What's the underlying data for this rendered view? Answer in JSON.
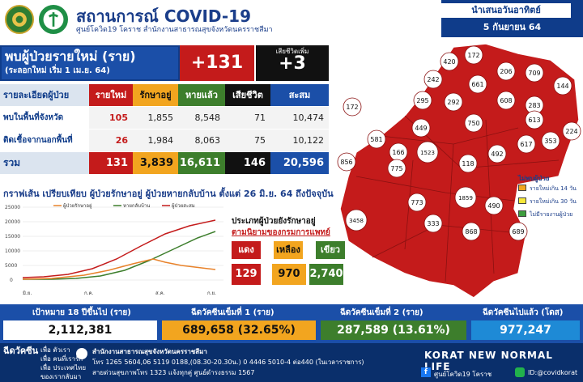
{
  "header": {
    "title": "สถานการณ์ COVID-19",
    "subtitle": "ศูนย์โควิด19 โคราช สำนักงานสาธารณสุขจังหวัดนครราชสีมา",
    "day": "นำเสนอวันอาทิตย์",
    "date": "5 กันยายน 64"
  },
  "new_patients": {
    "label": "พบผู้ป่วยรายใหม่ (ราย)",
    "sub": "(ระลอกใหม่ เริ่ม 1 เม.ย. 64)",
    "value": "+131",
    "death_label": "เสียชีวิตเพิ่ม",
    "death_value": "+3"
  },
  "table": {
    "headers": [
      "รายละเอียดผู้ป่วย",
      "รายใหม่",
      "รักษาอยู่",
      "หายแล้ว",
      "เสียชีวิต",
      "สะสม"
    ],
    "rows": [
      [
        "พบในพื้นที่จังหวัด",
        "105",
        "1,855",
        "8,548",
        "71",
        "10,474"
      ],
      [
        "ติดเชื้อจากนอกพื้นที่",
        "26",
        "1,984",
        "8,063",
        "75",
        "10,122"
      ]
    ],
    "total": [
      "รวม",
      "131",
      "3,839",
      "16,611",
      "146",
      "20,596"
    ]
  },
  "graph": {
    "title": "กราฟเส้น เปรียบเทียบ ผู้ป่วยรักษาอยู่ ผู้ป่วยหายกลับบ้าน ตั้งแต่ 26 มิ.ย. 64 ถึงปัจจุบัน",
    "legend": [
      "ผู้ป่วยรักษาอยู่",
      "หายกลับบ้าน",
      "ผู้ป่วยสะสม"
    ],
    "yticks": [
      "25000",
      "20000",
      "15000",
      "10000",
      "5000",
      "0"
    ],
    "months": [
      "มิ.ย.",
      "ก.ค.",
      "ส.ค.",
      "ก.ย."
    ],
    "colors": {
      "treating": "#e8822a",
      "recovered": "#3d7e2c",
      "cumulative": "#c41b1b"
    }
  },
  "hospital": {
    "title1": "ประเภทผู้ป่วยยังรักษาอยู่",
    "title2": "ตามนิยามของกรมการแพทย์",
    "labels": [
      "แดง",
      "เหลือง",
      "เขียว"
    ],
    "values": [
      "129",
      "970",
      "2,740"
    ]
  },
  "vaccine": {
    "target_label": "เป้าหมาย 18 ปีขึ้นไป (ราย)",
    "target_value": "2,112,381",
    "dose1_label": "ฉีดวัคซีนเข็มที่ 1 (ราย)",
    "dose1_value": "689,658 (32.65%)",
    "dose2_label": "ฉีดวัคซีนเข็มที่ 2 (ราย)",
    "dose2_value": "287,589 (13.61%)",
    "total_label": "ฉีดวัคซีนไปแล้ว (โดส)",
    "total_value": "977,247"
  },
  "footer": {
    "tag": "ฉีดวัคซีน",
    "lines": [
      "เพื่อ ตัวเรา",
      "เพื่อ คนที่เรารัก",
      "เพื่อ ประเทศไทย",
      "ของเรากลับมา"
    ],
    "office": "สำนักงานสาธารณสุขจังหวัดนครราชสีมา",
    "phone": "โทร 1265 5604,06 5119 0188,(08.30-20.30น.) 0 4446 5010-4 ต่อ440 (ในเวลาราชการ)",
    "center": "สายด่วนสุขภาพโทร 1323 แจ้งทุกคู่ ศูนย์ดำรงธรรม 1567",
    "slogan": "KORAT NEW NORMAL LIFE",
    "fb": "ศูนย์โควิด19 โคราช",
    "line": "ID:@covidkorat"
  },
  "map_legend": {
    "title": "ไม่พบผู้ป่วย",
    "items": [
      "รายใหม่เกิน 14 วัน",
      "รายใหม่เกิน 30 วัน",
      "ไม่มีรายงานผู้ป่วย"
    ],
    "colors": [
      "#f2a51f",
      "#f7e83a",
      "#3d9e3d"
    ]
  },
  "map": {
    "districts": [
      {
        "n": "172"
      },
      {
        "n": "420"
      },
      {
        "n": "206"
      },
      {
        "n": "709"
      },
      {
        "n": "144"
      },
      {
        "n": "242"
      },
      {
        "n": "661"
      },
      {
        "n": "608"
      },
      {
        "n": "283"
      },
      {
        "n": "295"
      },
      {
        "n": "292"
      },
      {
        "n": "613"
      },
      {
        "n": "224"
      },
      {
        "n": "353"
      },
      {
        "n": "172"
      },
      {
        "n": "581"
      },
      {
        "n": "449"
      },
      {
        "n": "750"
      },
      {
        "n": "617"
      },
      {
        "n": "166"
      },
      {
        "n": "1523"
      },
      {
        "n": "492"
      },
      {
        "n": "856"
      },
      {
        "n": "775"
      },
      {
        "n": "118"
      },
      {
        "n": "1859"
      },
      {
        "n": "490"
      },
      {
        "n": "773"
      },
      {
        "n": "3458"
      },
      {
        "n": "333"
      },
      {
        "n": "868"
      },
      {
        "n": "689"
      }
    ]
  }
}
